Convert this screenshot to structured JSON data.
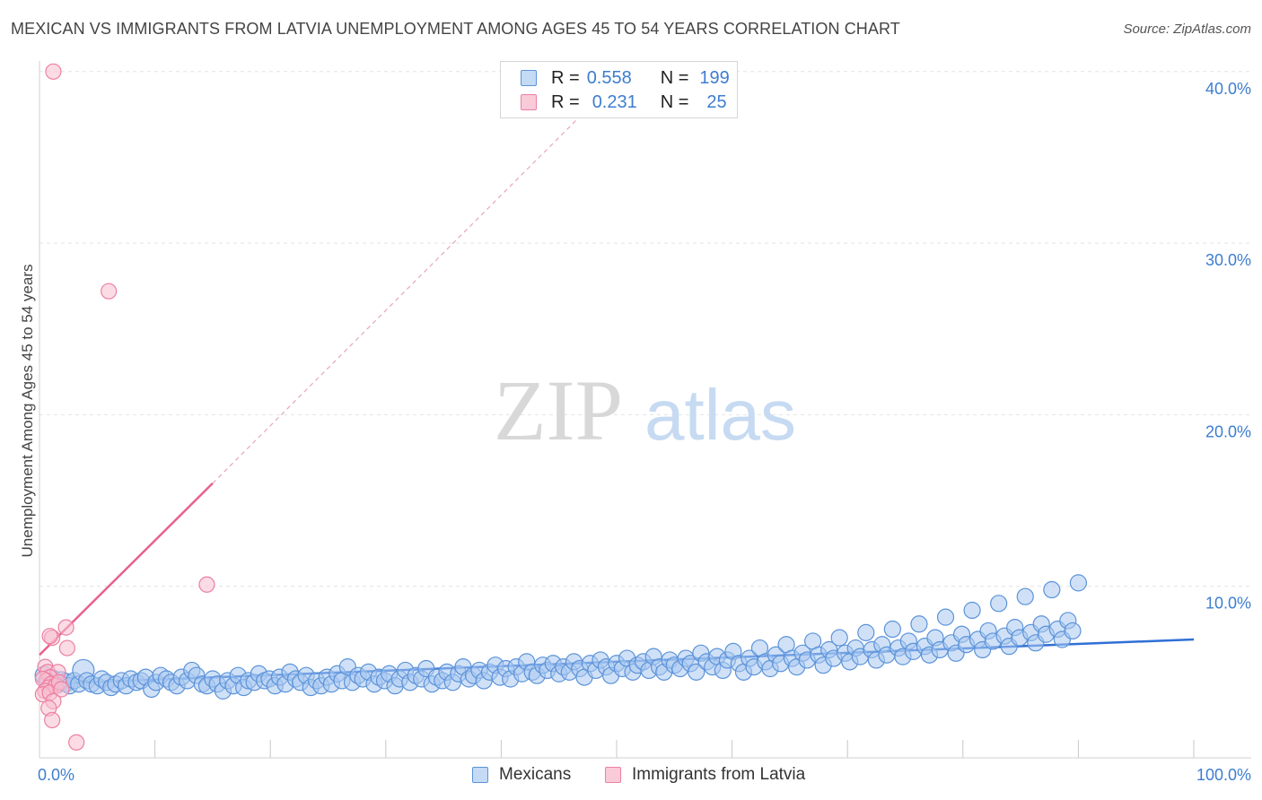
{
  "title": "MEXICAN VS IMMIGRANTS FROM LATVIA UNEMPLOYMENT AMONG AGES 45 TO 54 YEARS CORRELATION CHART",
  "source": "Source: ZipAtlas.com",
  "watermark": {
    "zip": "ZIP",
    "atlas": "atlas"
  },
  "colors": {
    "blue_fill": "#a9c8f0",
    "blue_stroke": "#5b93d9",
    "blue_line": "#2f6fd6",
    "pink_fill": "#f7bfd0",
    "pink_stroke": "#ec7fa3",
    "pink_line": "#e8608f",
    "grid": "#e3e3e3",
    "tick_text": "#3d7dd0"
  },
  "legend": {
    "rows": [
      {
        "r_label": "R =",
        "r_value": "0.558",
        "n_label": "N =",
        "n_value": "199",
        "color": "blue"
      },
      {
        "r_label": "R =",
        "r_value": "0.231",
        "n_label": "N =",
        "n_value": "25",
        "color": "pink"
      }
    ]
  },
  "bottom_legend": [
    {
      "label": "Mexicans",
      "color": "blue"
    },
    {
      "label": "Immigrants from Latvia",
      "color": "pink"
    }
  ],
  "chart_data": {
    "type": "scatter",
    "title": "MEXICAN VS IMMIGRANTS FROM LATVIA UNEMPLOYMENT AMONG AGES 45 TO 54 YEARS CORRELATION CHART",
    "xlabel": "",
    "ylabel": "Unemployment Among Ages 45 to 54 years",
    "xlim": [
      0,
      100
    ],
    "ylim": [
      0,
      42
    ],
    "x_tick_labels": [
      {
        "value": 0,
        "label": "0.0%"
      },
      {
        "value": 100,
        "label": "100.0%"
      }
    ],
    "y_tick_labels": [
      {
        "value": 10,
        "label": "10.0%"
      },
      {
        "value": 20,
        "label": "20.0%"
      },
      {
        "value": 30,
        "label": "30.0%"
      },
      {
        "value": 40,
        "label": "40.0%"
      }
    ],
    "x_minor_ticks": [
      10,
      20,
      30,
      40,
      50,
      60,
      70,
      80,
      90,
      100
    ],
    "grid": true,
    "series": [
      {
        "name": "Mexicans",
        "color": "blue",
        "r": 0.558,
        "n": 199,
        "trend": {
          "x": [
            0,
            100
          ],
          "y": [
            4.3,
            6.9
          ],
          "style": "solid"
        },
        "points": [
          [
            0.4,
            4.8
          ],
          [
            0.8,
            4.4
          ],
          [
            1.1,
            4.6
          ],
          [
            1.5,
            4.3
          ],
          [
            1.9,
            4.5
          ],
          [
            2.3,
            4.4
          ],
          [
            2.6,
            4.2
          ],
          [
            3.0,
            4.5
          ],
          [
            3.4,
            4.3
          ],
          [
            3.8,
            5.1
          ],
          [
            4.1,
            4.5
          ],
          [
            4.5,
            4.3
          ],
          [
            5.0,
            4.2
          ],
          [
            5.4,
            4.6
          ],
          [
            5.8,
            4.4
          ],
          [
            6.2,
            4.1
          ],
          [
            6.6,
            4.3
          ],
          [
            7.1,
            4.5
          ],
          [
            7.5,
            4.2
          ],
          [
            7.9,
            4.6
          ],
          [
            8.4,
            4.4
          ],
          [
            8.8,
            4.5
          ],
          [
            9.2,
            4.7
          ],
          [
            9.7,
            4.0
          ],
          [
            10.1,
            4.4
          ],
          [
            10.5,
            4.8
          ],
          [
            11.0,
            4.6
          ],
          [
            11.4,
            4.4
          ],
          [
            11.9,
            4.2
          ],
          [
            12.3,
            4.7
          ],
          [
            12.8,
            4.5
          ],
          [
            13.2,
            5.1
          ],
          [
            13.6,
            4.8
          ],
          [
            14.1,
            4.3
          ],
          [
            14.5,
            4.2
          ],
          [
            15.0,
            4.6
          ],
          [
            15.4,
            4.3
          ],
          [
            15.9,
            3.9
          ],
          [
            16.3,
            4.5
          ],
          [
            16.8,
            4.2
          ],
          [
            17.2,
            4.8
          ],
          [
            17.7,
            4.1
          ],
          [
            18.1,
            4.5
          ],
          [
            18.6,
            4.4
          ],
          [
            19.0,
            4.9
          ],
          [
            19.5,
            4.5
          ],
          [
            19.9,
            4.6
          ],
          [
            20.4,
            4.2
          ],
          [
            20.8,
            4.7
          ],
          [
            21.3,
            4.3
          ],
          [
            21.7,
            5.0
          ],
          [
            22.2,
            4.6
          ],
          [
            22.6,
            4.4
          ],
          [
            23.1,
            4.8
          ],
          [
            23.5,
            4.1
          ],
          [
            24.0,
            4.5
          ],
          [
            24.4,
            4.2
          ],
          [
            24.9,
            4.7
          ],
          [
            25.3,
            4.3
          ],
          [
            25.8,
            4.9
          ],
          [
            26.2,
            4.5
          ],
          [
            26.7,
            5.3
          ],
          [
            27.1,
            4.4
          ],
          [
            27.6,
            4.8
          ],
          [
            28.0,
            4.6
          ],
          [
            28.5,
            5.0
          ],
          [
            29.0,
            4.3
          ],
          [
            29.4,
            4.7
          ],
          [
            29.9,
            4.5
          ],
          [
            30.3,
            4.9
          ],
          [
            30.8,
            4.2
          ],
          [
            31.2,
            4.6
          ],
          [
            31.7,
            5.1
          ],
          [
            32.1,
            4.4
          ],
          [
            32.6,
            4.8
          ],
          [
            33.1,
            4.6
          ],
          [
            33.5,
            5.2
          ],
          [
            34.0,
            4.3
          ],
          [
            34.4,
            4.7
          ],
          [
            34.9,
            4.5
          ],
          [
            35.3,
            5.0
          ],
          [
            35.8,
            4.4
          ],
          [
            36.3,
            4.9
          ],
          [
            36.7,
            5.3
          ],
          [
            37.2,
            4.6
          ],
          [
            37.6,
            4.8
          ],
          [
            38.1,
            5.1
          ],
          [
            38.5,
            4.5
          ],
          [
            39.0,
            5.0
          ],
          [
            39.5,
            5.4
          ],
          [
            39.9,
            4.7
          ],
          [
            40.4,
            5.2
          ],
          [
            40.8,
            4.6
          ],
          [
            41.3,
            5.3
          ],
          [
            41.8,
            4.9
          ],
          [
            42.2,
            5.6
          ],
          [
            42.7,
            5.0
          ],
          [
            43.1,
            4.8
          ],
          [
            43.6,
            5.4
          ],
          [
            44.0,
            5.1
          ],
          [
            44.5,
            5.5
          ],
          [
            45.0,
            4.9
          ],
          [
            45.4,
            5.3
          ],
          [
            45.9,
            5.0
          ],
          [
            46.3,
            5.6
          ],
          [
            46.8,
            5.2
          ],
          [
            47.2,
            4.7
          ],
          [
            47.7,
            5.5
          ],
          [
            48.2,
            5.1
          ],
          [
            48.6,
            5.7
          ],
          [
            49.1,
            5.3
          ],
          [
            49.5,
            4.8
          ],
          [
            50.0,
            5.5
          ],
          [
            50.5,
            5.2
          ],
          [
            50.9,
            5.8
          ],
          [
            51.4,
            5.0
          ],
          [
            51.8,
            5.4
          ],
          [
            52.3,
            5.6
          ],
          [
            52.8,
            5.1
          ],
          [
            53.2,
            5.9
          ],
          [
            53.7,
            5.3
          ],
          [
            54.1,
            5.0
          ],
          [
            54.6,
            5.7
          ],
          [
            55.0,
            5.4
          ],
          [
            55.5,
            5.2
          ],
          [
            56.0,
            5.8
          ],
          [
            56.4,
            5.5
          ],
          [
            56.9,
            5.0
          ],
          [
            57.3,
            6.1
          ],
          [
            57.8,
            5.6
          ],
          [
            58.3,
            5.3
          ],
          [
            58.7,
            5.9
          ],
          [
            59.2,
            5.1
          ],
          [
            59.6,
            5.7
          ],
          [
            60.1,
            6.2
          ],
          [
            60.6,
            5.5
          ],
          [
            61.0,
            5.0
          ],
          [
            61.5,
            5.8
          ],
          [
            61.9,
            5.3
          ],
          [
            62.4,
            6.4
          ],
          [
            62.9,
            5.6
          ],
          [
            63.3,
            5.2
          ],
          [
            63.8,
            6.0
          ],
          [
            64.2,
            5.5
          ],
          [
            64.7,
            6.6
          ],
          [
            65.2,
            5.8
          ],
          [
            65.6,
            5.3
          ],
          [
            66.1,
            6.1
          ],
          [
            66.5,
            5.7
          ],
          [
            67.0,
            6.8
          ],
          [
            67.5,
            6.0
          ],
          [
            67.9,
            5.4
          ],
          [
            68.4,
            6.3
          ],
          [
            68.8,
            5.8
          ],
          [
            69.3,
            7.0
          ],
          [
            69.8,
            6.1
          ],
          [
            70.2,
            5.6
          ],
          [
            70.7,
            6.4
          ],
          [
            71.1,
            5.9
          ],
          [
            71.6,
            7.3
          ],
          [
            72.1,
            6.3
          ],
          [
            72.5,
            5.7
          ],
          [
            73.0,
            6.6
          ],
          [
            73.4,
            6.0
          ],
          [
            73.9,
            7.5
          ],
          [
            74.4,
            6.4
          ],
          [
            74.8,
            5.9
          ],
          [
            75.3,
            6.8
          ],
          [
            75.7,
            6.2
          ],
          [
            76.2,
            7.8
          ],
          [
            76.7,
            6.5
          ],
          [
            77.1,
            6.0
          ],
          [
            77.6,
            7.0
          ],
          [
            78.0,
            6.3
          ],
          [
            78.5,
            8.2
          ],
          [
            79.0,
            6.7
          ],
          [
            79.4,
            6.1
          ],
          [
            79.9,
            7.2
          ],
          [
            80.3,
            6.6
          ],
          [
            80.8,
            8.6
          ],
          [
            81.3,
            6.9
          ],
          [
            81.7,
            6.3
          ],
          [
            82.2,
            7.4
          ],
          [
            82.6,
            6.8
          ],
          [
            83.1,
            9.0
          ],
          [
            83.6,
            7.1
          ],
          [
            84.0,
            6.5
          ],
          [
            84.5,
            7.6
          ],
          [
            84.9,
            7.0
          ],
          [
            85.4,
            9.4
          ],
          [
            85.9,
            7.3
          ],
          [
            86.3,
            6.7
          ],
          [
            86.8,
            7.8
          ],
          [
            87.2,
            7.2
          ],
          [
            87.7,
            9.8
          ],
          [
            88.2,
            7.5
          ],
          [
            88.6,
            6.9
          ],
          [
            89.1,
            8.0
          ],
          [
            89.5,
            7.4
          ],
          [
            90.0,
            10.2
          ]
        ]
      },
      {
        "name": "Immigrants from Latvia",
        "color": "pink",
        "r": 0.231,
        "n": 25,
        "trend_solid": {
          "x": [
            0,
            15
          ],
          "y": [
            6.0,
            16.0
          ]
        },
        "trend_dashed": {
          "x": [
            15,
            47
          ],
          "y": [
            16.0,
            37.5
          ]
        },
        "points": [
          [
            1.2,
            40.0
          ],
          [
            6.0,
            27.2
          ],
          [
            14.5,
            10.1
          ],
          [
            2.3,
            7.6
          ],
          [
            2.4,
            6.4
          ],
          [
            1.1,
            7.0
          ],
          [
            0.9,
            7.1
          ],
          [
            0.5,
            5.3
          ],
          [
            0.7,
            5.0
          ],
          [
            1.6,
            5.0
          ],
          [
            0.9,
            4.7
          ],
          [
            0.6,
            4.5
          ],
          [
            0.3,
            4.6
          ],
          [
            1.0,
            4.3
          ],
          [
            0.8,
            4.1
          ],
          [
            1.4,
            4.2
          ],
          [
            0.5,
            3.9
          ],
          [
            0.3,
            3.7
          ],
          [
            0.9,
            3.8
          ],
          [
            1.2,
            3.3
          ],
          [
            0.8,
            2.9
          ],
          [
            1.1,
            2.2
          ],
          [
            3.2,
            0.9
          ],
          [
            1.7,
            4.4
          ],
          [
            1.9,
            4.0
          ]
        ]
      }
    ]
  }
}
